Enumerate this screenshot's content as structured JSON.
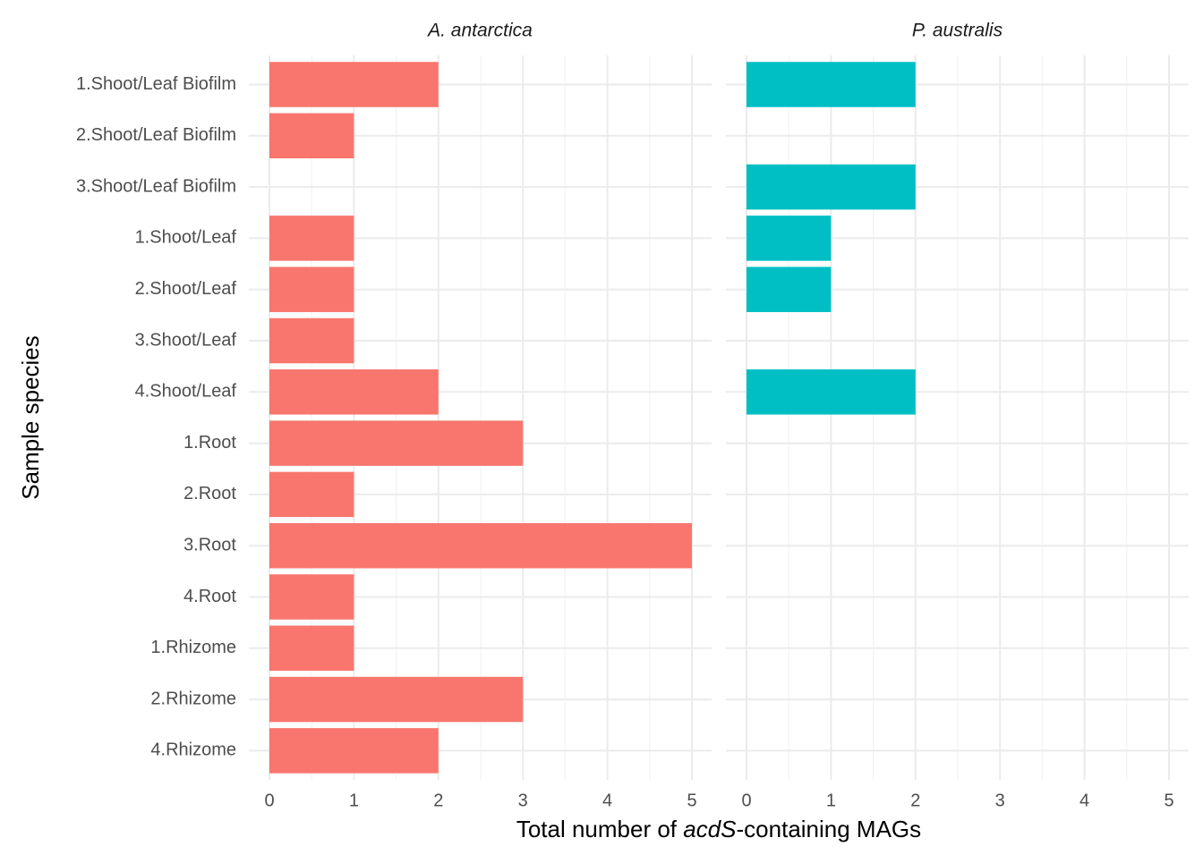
{
  "chart_data": {
    "type": "bar",
    "orientation": "horizontal",
    "facet_layout": "one row, two columns",
    "grid": true,
    "legend": "none",
    "xlabel_parts": [
      {
        "text": "Total number of ",
        "italic": false
      },
      {
        "text": "acdS",
        "italic": true
      },
      {
        "text": "-containing MAGs",
        "italic": false
      }
    ],
    "ylabel": "Sample species",
    "xlim": [
      0,
      5
    ],
    "xticks": [
      "0",
      "1",
      "2",
      "3",
      "4",
      "5"
    ],
    "categories": [
      "1.Shoot/Leaf Biofilm",
      "2.Shoot/Leaf Biofilm",
      "3.Shoot/Leaf Biofilm",
      "1.Shoot/Leaf",
      "2.Shoot/Leaf",
      "3.Shoot/Leaf",
      "4.Shoot/Leaf",
      "1.Root",
      "2.Root",
      "3.Root",
      "4.Root",
      "1.Rhizome",
      "2.Rhizome",
      "4.Rhizome"
    ],
    "panels": [
      {
        "strip": "A. antarctica",
        "color": "#F8766D",
        "values": [
          2,
          1,
          null,
          1,
          1,
          1,
          2,
          3,
          1,
          5,
          1,
          1,
          3,
          2
        ]
      },
      {
        "strip": "P. australis",
        "color": "#00BFC4",
        "values": [
          2,
          null,
          2,
          1,
          1,
          null,
          2,
          null,
          null,
          null,
          null,
          null,
          null,
          null
        ]
      }
    ],
    "colors": {
      "grid_major": "#EBEBEB",
      "grid_minor": "#F3F3F3",
      "tick_text": "#4D4D4D",
      "title_text": "#000000"
    }
  }
}
